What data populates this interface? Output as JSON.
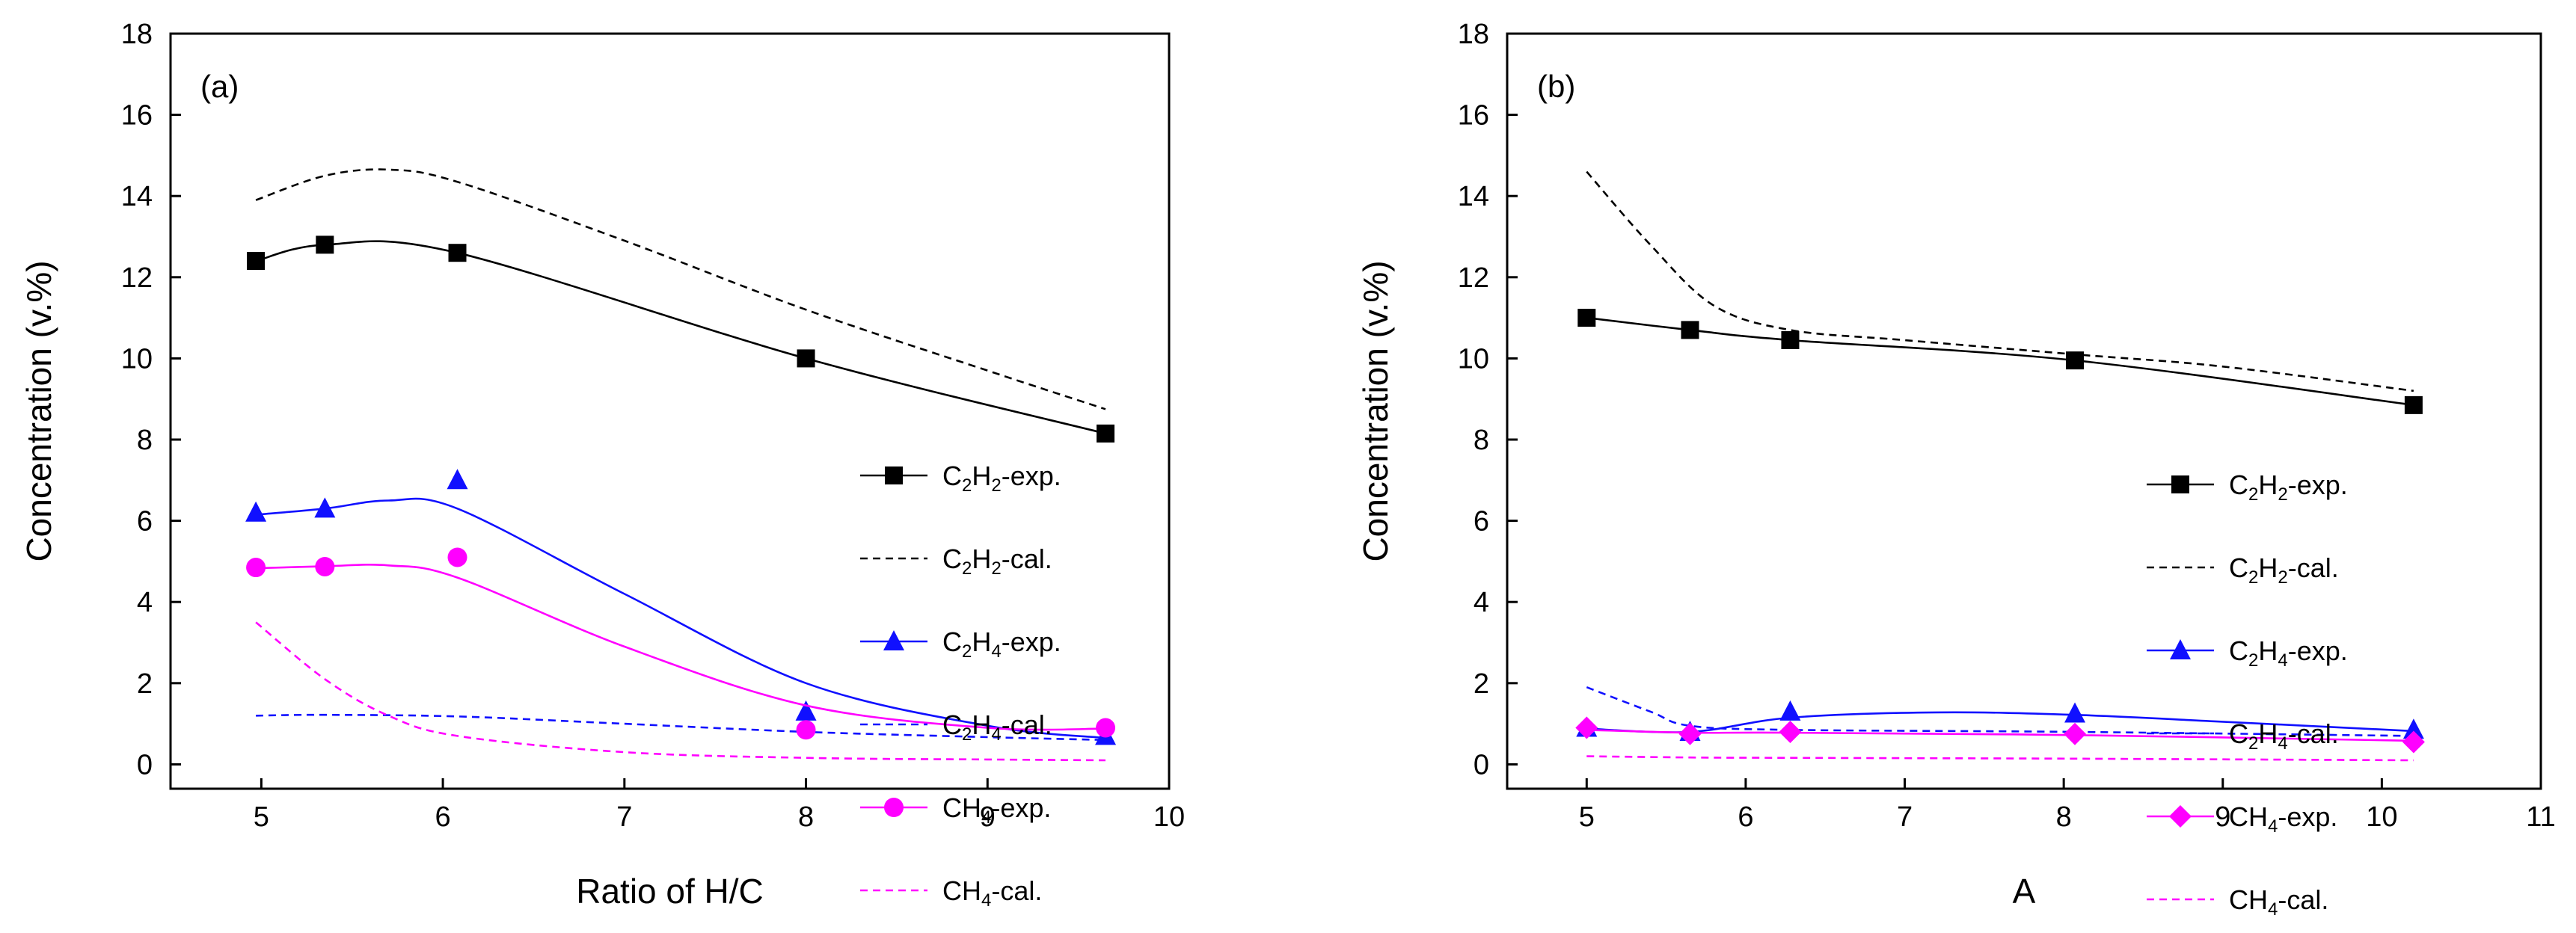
{
  "chart_data": [
    {
      "type": "line",
      "panel_label": "(a)",
      "xlabel": "Ratio of H/C",
      "ylabel": "Concentration (v.%)",
      "xlim": [
        4.5,
        10
      ],
      "ylim": [
        -0.6,
        18
      ],
      "xticks": [
        5,
        6,
        7,
        8,
        9,
        10
      ],
      "yticks": [
        0,
        2,
        4,
        6,
        8,
        10,
        12,
        14,
        16,
        18
      ],
      "grid": false,
      "legend_position": "right",
      "series": [
        {
          "key": "c2h2_exp",
          "label": "-exp.",
          "species": [
            {
              "t": "C"
            },
            {
              "t": "2",
              "sub": true
            },
            {
              "t": "H"
            },
            {
              "t": "2",
              "sub": true
            }
          ],
          "color": "#000000",
          "style": "solid",
          "marker": "square",
          "points": [
            [
              4.97,
              12.4
            ],
            [
              5.35,
              12.8
            ],
            [
              6.08,
              12.6
            ],
            [
              8.0,
              10.0
            ],
            [
              9.65,
              8.15
            ]
          ]
        },
        {
          "key": "c2h2_cal",
          "label": "-cal.",
          "species": [
            {
              "t": "C"
            },
            {
              "t": "2",
              "sub": true
            },
            {
              "t": "H"
            },
            {
              "t": "2",
              "sub": true
            }
          ],
          "color": "#000000",
          "style": "dashed",
          "marker": "none",
          "points": [
            [
              4.97,
              13.9
            ],
            [
              5.35,
              14.5
            ],
            [
              5.7,
              14.65
            ],
            [
              6.08,
              14.35
            ],
            [
              7.0,
              12.9
            ],
            [
              8.0,
              11.2
            ],
            [
              9.0,
              9.7
            ],
            [
              9.65,
              8.75
            ]
          ]
        },
        {
          "key": "c2h4_exp",
          "label": "-exp.",
          "species": [
            {
              "t": "C"
            },
            {
              "t": "2",
              "sub": true
            },
            {
              "t": "H"
            },
            {
              "t": "4",
              "sub": true
            }
          ],
          "color": "#1010ff",
          "style": "solid",
          "marker": "triangle",
          "points": [
            [
              4.97,
              6.2
            ],
            [
              5.35,
              6.3
            ],
            [
              6.08,
              7.0
            ],
            [
              8.0,
              1.3
            ],
            [
              9.65,
              0.7
            ]
          ],
          "curve": [
            [
              4.97,
              6.15
            ],
            [
              5.35,
              6.3
            ],
            [
              5.7,
              6.5
            ],
            [
              6.08,
              6.3
            ],
            [
              7.0,
              4.2
            ],
            [
              8.0,
              2.0
            ],
            [
              9.0,
              0.95
            ],
            [
              9.65,
              0.65
            ]
          ]
        },
        {
          "key": "c2h4_cal",
          "label": "-cal.",
          "species": [
            {
              "t": "C"
            },
            {
              "t": "2",
              "sub": true
            },
            {
              "t": "H"
            },
            {
              "t": "4",
              "sub": true
            }
          ],
          "color": "#1010ff",
          "style": "dashed",
          "marker": "none",
          "points": [
            [
              4.97,
              1.2
            ],
            [
              5.35,
              1.22
            ],
            [
              6.08,
              1.18
            ],
            [
              7.0,
              1.0
            ],
            [
              8.0,
              0.8
            ],
            [
              9.0,
              0.67
            ],
            [
              9.65,
              0.6
            ]
          ]
        },
        {
          "key": "ch4_exp",
          "label": "-exp.",
          "species": [
            {
              "t": "CH"
            },
            {
              "t": "4",
              "sub": true
            }
          ],
          "color": "#ff00ff",
          "style": "solid",
          "marker": "circle",
          "points": [
            [
              4.97,
              4.85
            ],
            [
              5.35,
              4.87
            ],
            [
              6.08,
              5.1
            ],
            [
              8.0,
              0.85
            ],
            [
              9.65,
              0.9
            ]
          ],
          "curve": [
            [
              4.97,
              4.83
            ],
            [
              5.35,
              4.88
            ],
            [
              5.7,
              4.9
            ],
            [
              6.08,
              4.6
            ],
            [
              7.0,
              2.9
            ],
            [
              8.0,
              1.45
            ],
            [
              9.0,
              0.9
            ],
            [
              9.65,
              0.88
            ]
          ]
        },
        {
          "key": "ch4_cal",
          "label": "-cal.",
          "species": [
            {
              "t": "CH"
            },
            {
              "t": "4",
              "sub": true
            }
          ],
          "color": "#ff00ff",
          "style": "dashed",
          "marker": "none",
          "points": [
            [
              4.97,
              3.5
            ],
            [
              5.35,
              2.1
            ],
            [
              5.7,
              1.2
            ],
            [
              6.08,
              0.7
            ],
            [
              7.0,
              0.3
            ],
            [
              8.0,
              0.16
            ],
            [
              9.0,
              0.12
            ],
            [
              9.65,
              0.1
            ]
          ]
        }
      ]
    },
    {
      "type": "line",
      "panel_label": "(b)",
      "xlabel": "A",
      "ylabel": "Concentration (v.%)",
      "xlim": [
        4.5,
        11
      ],
      "ylim": [
        -0.6,
        18
      ],
      "xticks": [
        5,
        6,
        7,
        8,
        9,
        10,
        11
      ],
      "yticks": [
        0,
        2,
        4,
        6,
        8,
        10,
        12,
        14,
        16,
        18
      ],
      "grid": false,
      "legend_position": "right",
      "series": [
        {
          "key": "c2h2_exp",
          "label": "-exp.",
          "species": [
            {
              "t": "C"
            },
            {
              "t": "2",
              "sub": true
            },
            {
              "t": "H"
            },
            {
              "t": "2",
              "sub": true
            }
          ],
          "color": "#000000",
          "style": "solid",
          "marker": "square",
          "points": [
            [
              5.0,
              11.0
            ],
            [
              5.65,
              10.7
            ],
            [
              6.28,
              10.45
            ],
            [
              8.07,
              9.95
            ],
            [
              10.2,
              8.85
            ]
          ]
        },
        {
          "key": "c2h2_cal",
          "label": "-cal.",
          "species": [
            {
              "t": "C"
            },
            {
              "t": "2",
              "sub": true
            },
            {
              "t": "H"
            },
            {
              "t": "2",
              "sub": true
            }
          ],
          "color": "#000000",
          "style": "dashed",
          "marker": "none",
          "points": [
            [
              5.0,
              14.6
            ],
            [
              5.4,
              12.8
            ],
            [
              5.8,
              11.3
            ],
            [
              6.28,
              10.7
            ],
            [
              7.0,
              10.45
            ],
            [
              8.07,
              10.1
            ],
            [
              9.0,
              9.8
            ],
            [
              10.2,
              9.2
            ]
          ]
        },
        {
          "key": "c2h4_exp",
          "label": "-exp.",
          "species": [
            {
              "t": "C"
            },
            {
              "t": "2",
              "sub": true
            },
            {
              "t": "H"
            },
            {
              "t": "4",
              "sub": true
            }
          ],
          "color": "#1010ff",
          "style": "solid",
          "marker": "triangle",
          "points": [
            [
              5.0,
              0.9
            ],
            [
              5.65,
              0.8
            ],
            [
              6.28,
              1.3
            ],
            [
              8.07,
              1.25
            ],
            [
              10.2,
              0.85
            ]
          ],
          "curve": [
            [
              5.0,
              0.88
            ],
            [
              5.65,
              0.8
            ],
            [
              6.28,
              1.15
            ],
            [
              7.2,
              1.28
            ],
            [
              8.07,
              1.22
            ],
            [
              9.0,
              1.05
            ],
            [
              10.2,
              0.82
            ]
          ]
        },
        {
          "key": "c2h4_cal",
          "label": "-cal.",
          "species": [
            {
              "t": "C"
            },
            {
              "t": "2",
              "sub": true
            },
            {
              "t": "H"
            },
            {
              "t": "4",
              "sub": true
            }
          ],
          "color": "#1010ff",
          "style": "dashed",
          "marker": "none",
          "points": [
            [
              5.0,
              1.9
            ],
            [
              5.4,
              1.3
            ],
            [
              5.65,
              0.95
            ],
            [
              6.28,
              0.85
            ],
            [
              8.07,
              0.8
            ],
            [
              10.2,
              0.7
            ]
          ]
        },
        {
          "key": "ch4_exp",
          "label": "-exp.",
          "species": [
            {
              "t": "CH"
            },
            {
              "t": "4",
              "sub": true
            }
          ],
          "color": "#ff00ff",
          "style": "solid",
          "marker": "diamond",
          "points": [
            [
              5.0,
              0.9
            ],
            [
              5.65,
              0.75
            ],
            [
              6.28,
              0.8
            ],
            [
              8.07,
              0.75
            ],
            [
              10.2,
              0.55
            ]
          ],
          "curve": [
            [
              5.0,
              0.85
            ],
            [
              5.65,
              0.78
            ],
            [
              6.28,
              0.78
            ],
            [
              8.07,
              0.72
            ],
            [
              10.2,
              0.58
            ]
          ]
        },
        {
          "key": "ch4_cal",
          "label": "-cal.",
          "species": [
            {
              "t": "CH"
            },
            {
              "t": "4",
              "sub": true
            }
          ],
          "color": "#ff00ff",
          "style": "dashed",
          "marker": "none",
          "points": [
            [
              5.0,
              0.2
            ],
            [
              5.65,
              0.17
            ],
            [
              6.28,
              0.16
            ],
            [
              8.07,
              0.14
            ],
            [
              10.2,
              0.1
            ]
          ]
        }
      ]
    }
  ]
}
